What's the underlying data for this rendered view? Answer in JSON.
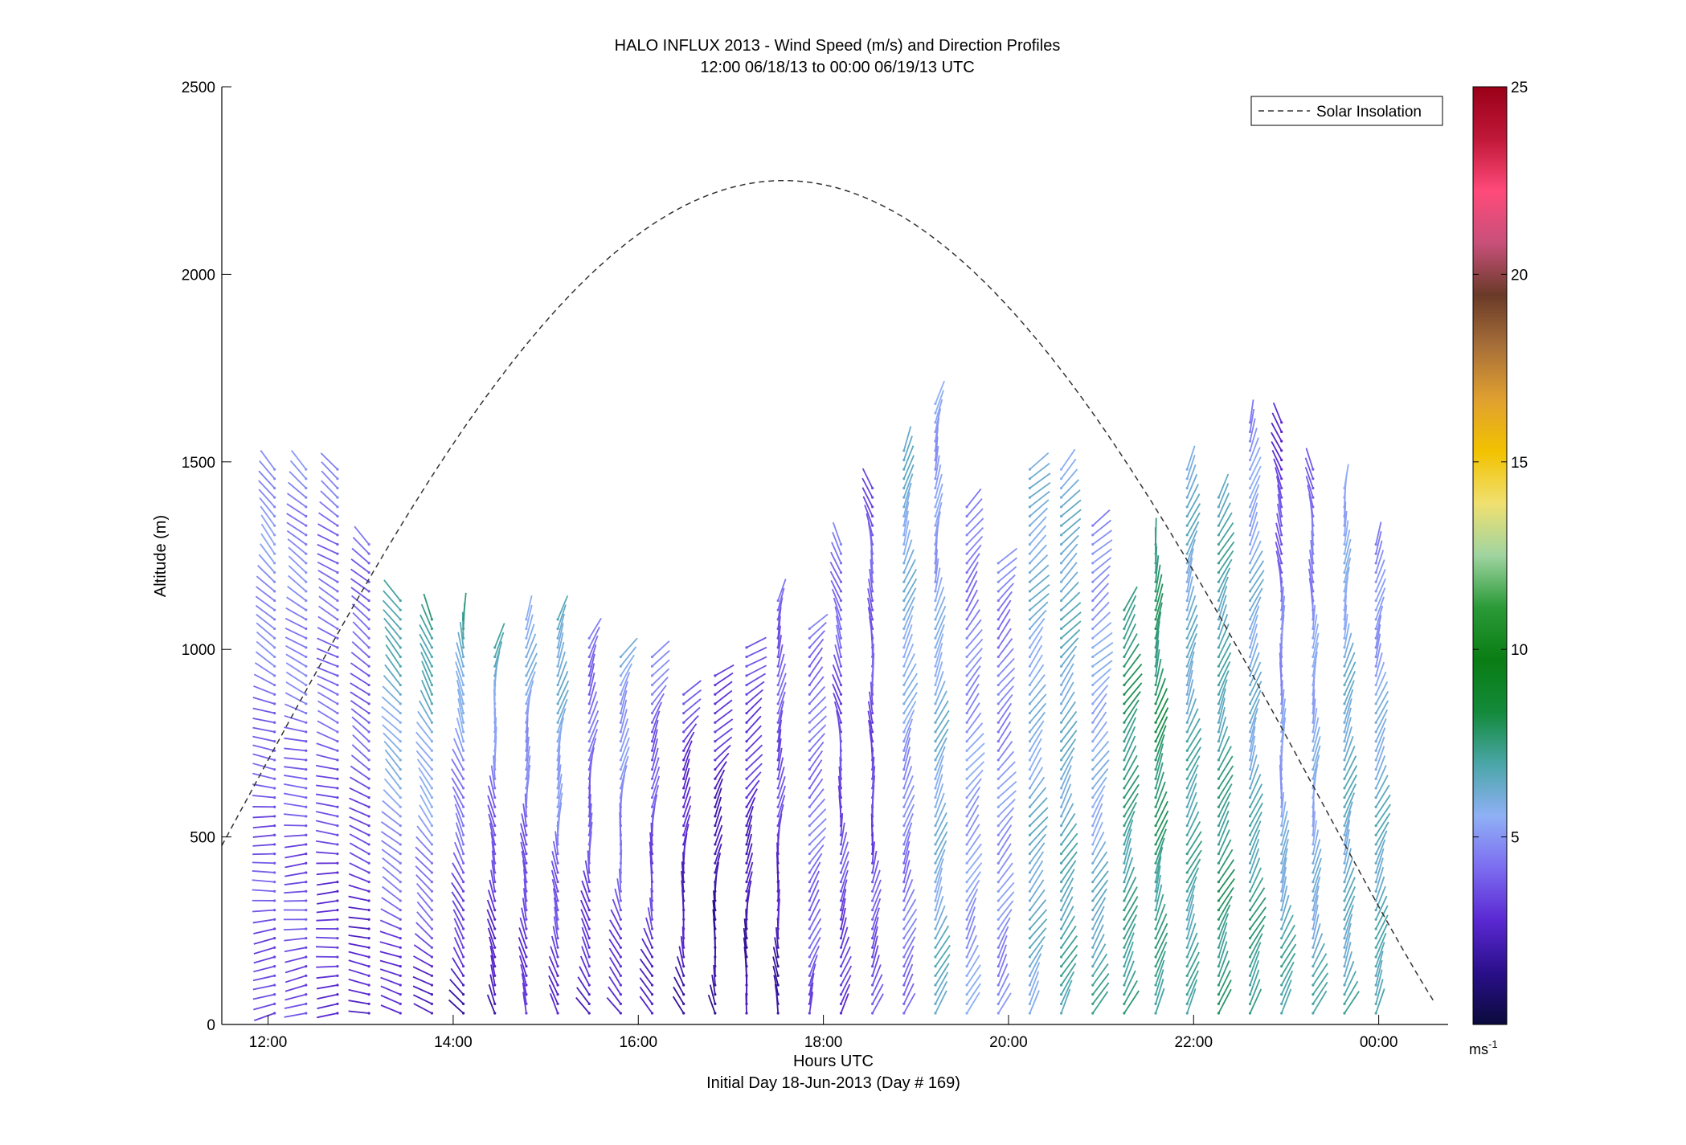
{
  "chart_data": {
    "type": "wind-barb-profile",
    "title": "HALO INFLUX 2013 - Wind Speed (m/s) and Direction Profiles",
    "subtitle": "12:00 06/18/13 to 00:00 06/19/13  UTC",
    "xlabel": "Hours UTC",
    "xlabel_note": "Initial Day 18-Jun-2013 (Day # 169)",
    "ylabel": "Altitude (m)",
    "xlim_hours": [
      11.5,
      24.75
    ],
    "ylim": [
      0,
      2500
    ],
    "x_ticks": [
      {
        "value": 12,
        "label": "12:00"
      },
      {
        "value": 14,
        "label": "14:00"
      },
      {
        "value": 16,
        "label": "16:00"
      },
      {
        "value": 18,
        "label": "18:00"
      },
      {
        "value": 20,
        "label": "20:00"
      },
      {
        "value": 22,
        "label": "22:00"
      },
      {
        "value": 24,
        "label": "00:00"
      }
    ],
    "y_ticks": [
      0,
      500,
      1000,
      1500,
      2000,
      2500
    ],
    "legend": {
      "label": "Solar Insolation",
      "placement": "top-right",
      "style": "dashed"
    },
    "colorbar": {
      "range": [
        0,
        25
      ],
      "ticks": [
        5,
        10,
        15,
        20,
        25
      ],
      "unit_label": "ms",
      "unit_exponent": "-1",
      "colors": [
        "#0a0a3c",
        "#2a0f8a",
        "#5a28d2",
        "#7c6cf0",
        "#8fb0f5",
        "#4aa6a8",
        "#138a3a",
        "#0a7d14",
        "#2a9a38",
        "#9fd4a0",
        "#f0e070",
        "#f2c200",
        "#e0a030",
        "#a87038",
        "#6a3a28",
        "#c8507a",
        "#ff4a7a",
        "#c01838",
        "#9a0018"
      ]
    },
    "solar_insolation": {
      "peak_hour": 17.57,
      "peak_altitude": 2250,
      "half_width_hours": 7.2,
      "points": [
        {
          "hour": 11.5,
          "altitude": 425
        },
        {
          "hour": 13.0,
          "altitude": 1150
        },
        {
          "hour": 14.0,
          "altitude": 1600
        },
        {
          "hour": 15.0,
          "altitude": 1950
        },
        {
          "hour": 16.0,
          "altitude": 2150
        },
        {
          "hour": 17.57,
          "altitude": 2250
        },
        {
          "hour": 19.0,
          "altitude": 2150
        },
        {
          "hour": 20.0,
          "altitude": 1950
        },
        {
          "hour": 21.0,
          "altitude": 1650
        },
        {
          "hour": 22.0,
          "altitude": 1330
        },
        {
          "hour": 23.0,
          "altitude": 900
        },
        {
          "hour": 24.0,
          "altitude": 450
        },
        {
          "hour": 24.65,
          "altitude": 150
        }
      ]
    },
    "profiles": [
      {
        "hour": 12.07,
        "top": 1480,
        "speed_low": 3.0,
        "speed_high": 5.2,
        "dir_low": 245,
        "dir_high": 330
      },
      {
        "hour": 12.41,
        "top": 1480,
        "speed_low": 3.2,
        "speed_high": 5.0,
        "dir_low": 250,
        "dir_high": 320
      },
      {
        "hour": 12.75,
        "top": 1480,
        "speed_low": 2.8,
        "speed_high": 4.6,
        "dir_low": 260,
        "dir_high": 315
      },
      {
        "hour": 13.09,
        "top": 1280,
        "speed_low": 2.6,
        "speed_high": 4.4,
        "dir_low": 280,
        "dir_high": 320
      },
      {
        "hour": 13.43,
        "top": 1130,
        "speed_low": 2.7,
        "speed_high": 7.5,
        "dir_low": 290,
        "dir_high": 330
      },
      {
        "hour": 13.77,
        "top": 1100,
        "speed_low": 2.5,
        "speed_high": 7.8,
        "dir_low": 300,
        "dir_high": 345
      },
      {
        "hour": 14.11,
        "top": 1100,
        "speed_low": 2.0,
        "speed_high": 7.0,
        "dir_low": 320,
        "dir_high": 355
      },
      {
        "hour": 14.45,
        "top": 1020,
        "speed_low": 1.6,
        "speed_high": 6.5,
        "dir_low": 335,
        "dir_high": 10
      },
      {
        "hour": 14.79,
        "top": 1100,
        "speed_low": 2.6,
        "speed_high": 6.0,
        "dir_low": 340,
        "dir_high": 20
      },
      {
        "hour": 15.13,
        "top": 1100,
        "speed_low": 2.8,
        "speed_high": 6.8,
        "dir_low": 340,
        "dir_high": 25
      },
      {
        "hour": 15.47,
        "top": 1030,
        "speed_low": 2.8,
        "speed_high": 4.5,
        "dir_low": 330,
        "dir_high": 30
      },
      {
        "hour": 15.81,
        "top": 1000,
        "speed_low": 2.6,
        "speed_high": 6.0,
        "dir_low": 320,
        "dir_high": 40
      },
      {
        "hour": 16.15,
        "top": 1000,
        "speed_low": 2.4,
        "speed_high": 4.8,
        "dir_low": 320,
        "dir_high": 50
      },
      {
        "hour": 16.49,
        "top": 900,
        "speed_low": 1.8,
        "speed_high": 3.6,
        "dir_low": 330,
        "dir_high": 50
      },
      {
        "hour": 16.83,
        "top": 930,
        "speed_low": 1.4,
        "speed_high": 3.2,
        "dir_low": 340,
        "dir_high": 60
      },
      {
        "hour": 17.17,
        "top": 1010,
        "speed_low": 1.8,
        "speed_high": 3.4,
        "dir_low": 350,
        "dir_high": 60
      },
      {
        "hour": 17.51,
        "top": 1150,
        "speed_low": 2.0,
        "speed_high": 4.4,
        "dir_low": 355,
        "dir_high": 20
      },
      {
        "hour": 17.85,
        "top": 1070,
        "speed_low": 3.8,
        "speed_high": 4.6,
        "dir_low": 20,
        "dir_high": 50
      },
      {
        "hour": 18.19,
        "top": 1280,
        "speed_low": 3.0,
        "speed_high": 4.2,
        "dir_low": 25,
        "dir_high": 330
      },
      {
        "hour": 18.53,
        "top": 1450,
        "speed_low": 3.4,
        "speed_high": 3.8,
        "dir_low": 20,
        "dir_high": 340
      },
      {
        "hour": 18.87,
        "top": 1540,
        "speed_low": 4.0,
        "speed_high": 6.5,
        "dir_low": 25,
        "dir_high": 20
      },
      {
        "hour": 19.21,
        "top": 1660,
        "speed_low": 6.5,
        "speed_high": 5.0,
        "dir_low": 30,
        "dir_high": 10
      },
      {
        "hour": 19.55,
        "top": 1400,
        "speed_low": 5.5,
        "speed_high": 4.4,
        "dir_low": 30,
        "dir_high": 40
      },
      {
        "hour": 19.89,
        "top": 1250,
        "speed_low": 5.0,
        "speed_high": 4.6,
        "dir_low": 30,
        "dir_high": 45
      },
      {
        "hour": 20.23,
        "top": 1480,
        "speed_low": 6.2,
        "speed_high": 5.8,
        "dir_low": 30,
        "dir_high": 45
      },
      {
        "hour": 20.57,
        "top": 1490,
        "speed_low": 6.8,
        "speed_high": 6.0,
        "dir_low": 25,
        "dir_high": 45
      },
      {
        "hour": 20.91,
        "top": 1340,
        "speed_low": 6.8,
        "speed_high": 4.6,
        "dir_low": 25,
        "dir_high": 50
      },
      {
        "hour": 21.25,
        "top": 1110,
        "speed_low": 7.2,
        "speed_high": 7.5,
        "dir_low": 25,
        "dir_high": 30
      },
      {
        "hour": 21.59,
        "top": 1290,
        "speed_low": 7.4,
        "speed_high": 7.8,
        "dir_low": 25,
        "dir_high": 10
      },
      {
        "hour": 21.93,
        "top": 1490,
        "speed_low": 7.2,
        "speed_high": 6.0,
        "dir_low": 25,
        "dir_high": 20
      },
      {
        "hour": 22.27,
        "top": 1410,
        "speed_low": 7.6,
        "speed_high": 6.5,
        "dir_low": 25,
        "dir_high": 25
      },
      {
        "hour": 22.61,
        "top": 1610,
        "speed_low": 7.4,
        "speed_high": 5.0,
        "dir_low": 25,
        "dir_high": 20
      },
      {
        "hour": 22.95,
        "top": 1610,
        "speed_low": 7.0,
        "speed_high": 3.0,
        "dir_low": 25,
        "dir_high": 340
      },
      {
        "hour": 23.29,
        "top": 1490,
        "speed_low": 6.6,
        "speed_high": 4.2,
        "dir_low": 25,
        "dir_high": 350
      },
      {
        "hour": 23.63,
        "top": 1440,
        "speed_low": 6.8,
        "speed_high": 5.5,
        "dir_low": 25,
        "dir_high": 10
      },
      {
        "hour": 23.97,
        "top": 1280,
        "speed_low": 7.2,
        "speed_high": 4.8,
        "dir_low": 25,
        "dir_high": 20
      }
    ]
  }
}
